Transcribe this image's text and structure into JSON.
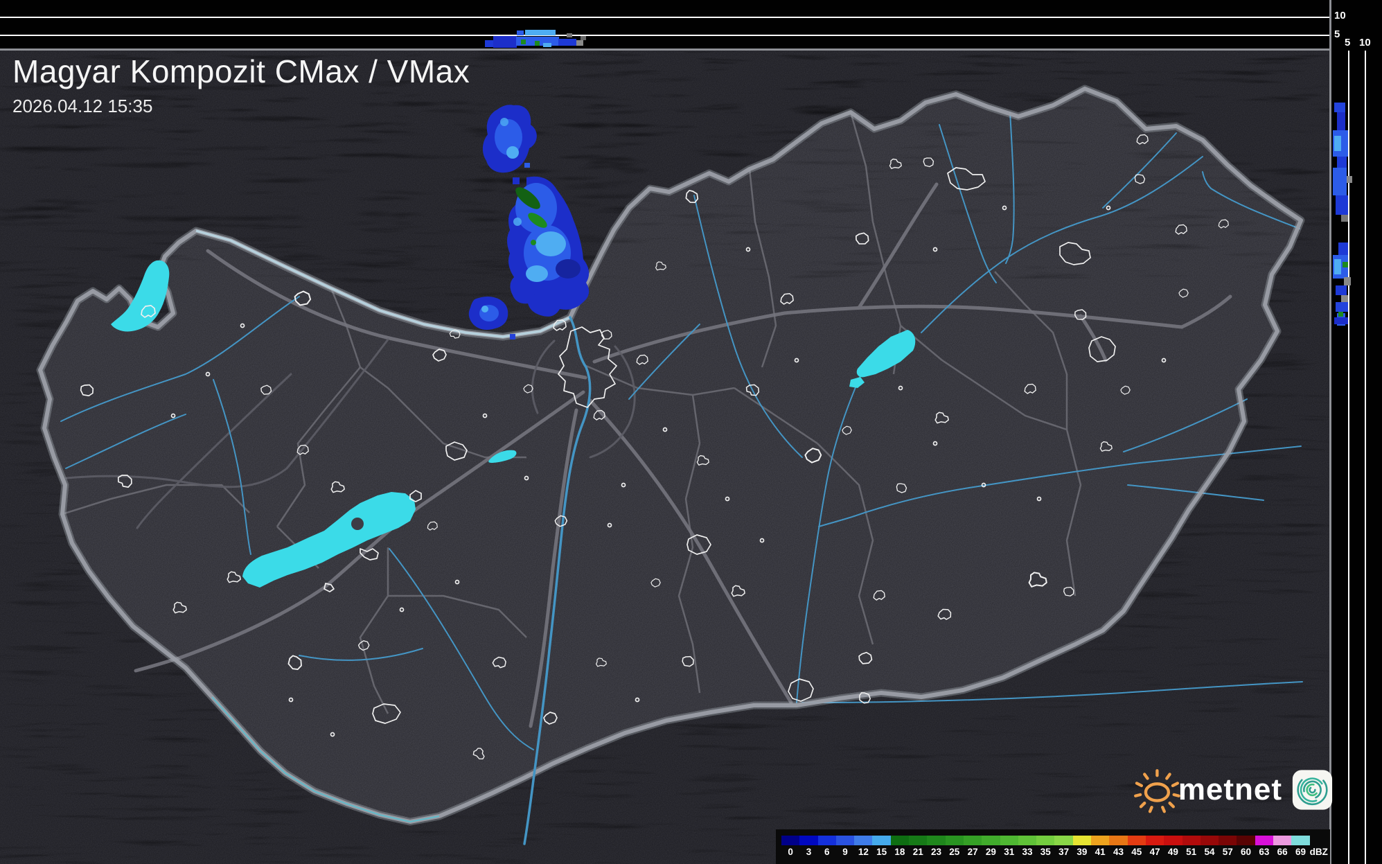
{
  "header": {
    "title": "Magyar Kompozit CMax / VMax",
    "timestamp": "2026.04.12 15:35"
  },
  "colorbar": {
    "unit": "dBZ",
    "ticks": [
      "0",
      "3",
      "6",
      "9",
      "12",
      "15",
      "18",
      "21",
      "23",
      "25",
      "27",
      "29",
      "31",
      "33",
      "35",
      "37",
      "39",
      "41",
      "43",
      "45",
      "47",
      "49",
      "51",
      "54",
      "57",
      "60",
      "63",
      "66",
      "69"
    ],
    "colors": [
      "#000089",
      "#0008c0",
      "#1430dc",
      "#2a52e0",
      "#3f7ce8",
      "#45aaec",
      "#0e6e12",
      "#167a17",
      "#1f871c",
      "#299421",
      "#35a026",
      "#41ab2c",
      "#4fb732",
      "#60c238",
      "#74cd3f",
      "#8ad747",
      "#e6e432",
      "#eda31e",
      "#e87715",
      "#e43c12",
      "#d81a10",
      "#c90f0e",
      "#b10b0b",
      "#970808",
      "#7a0505",
      "#580303",
      "#d911d9",
      "#ec9adf",
      "#7fdcdc"
    ]
  },
  "profile_axes": {
    "top_height_labels": [
      "10",
      "5"
    ],
    "right_distance_labels": [
      "5",
      "10"
    ]
  },
  "branding": {
    "logo_text": "metnet"
  },
  "theme": {
    "land": "#3d3d45",
    "outside": "#2a2a31",
    "lake": "#3bdbe8",
    "border": "#9b9ea6",
    "river": "#4495c4",
    "echo_dark": "#1c2ec9",
    "echo_mid": "#2c5ce8",
    "echo_light": "#4fadf2",
    "echo_green": "#1d8a1e",
    "panel": "#0a0a0a"
  }
}
